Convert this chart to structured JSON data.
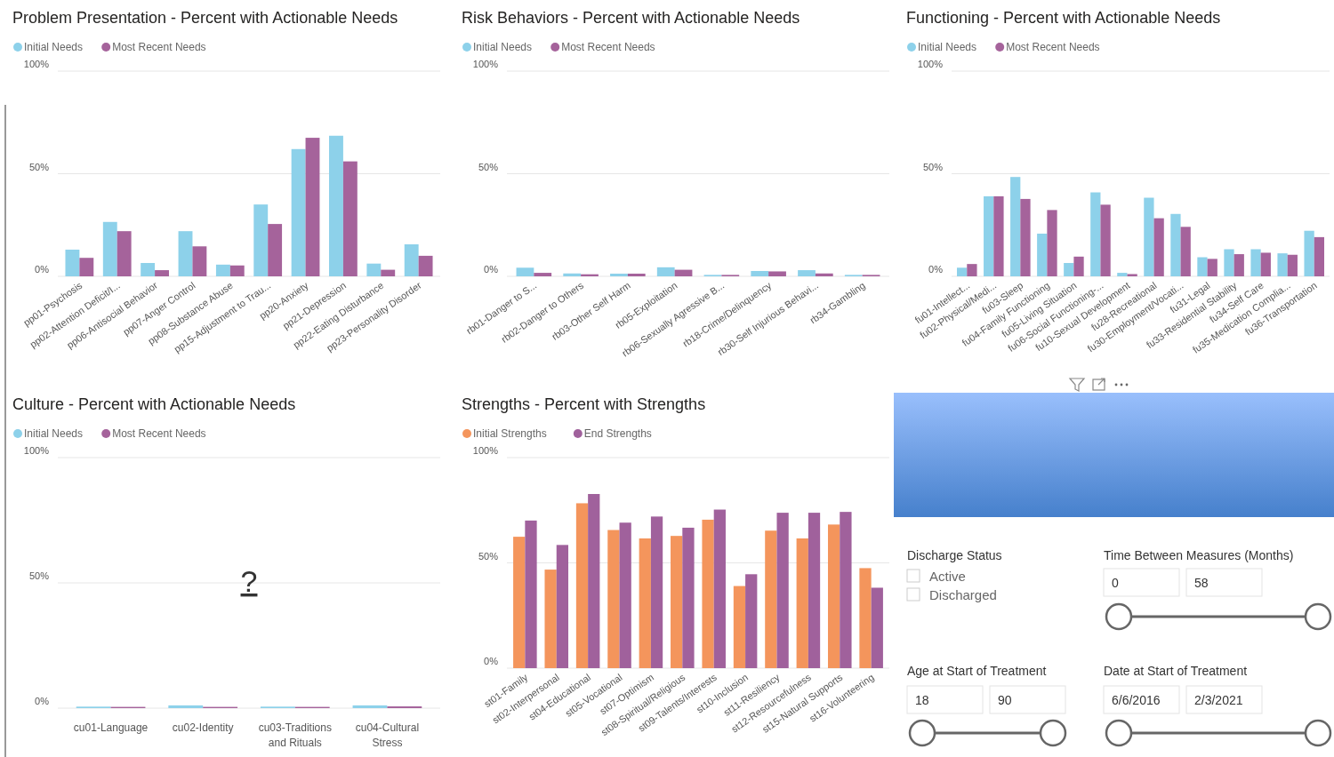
{
  "chart_data": [
    {
      "type": "bar",
      "title": "Problem Presentation - Percent with Actionable Needs",
      "categories": [
        "pp01-Psychosis",
        "pp02-Attention Deficit/I...",
        "pp06-Antisocial Behavior",
        "pp07-Anger Control",
        "pp08-Substance Abuse",
        "pp15-Adjustment to Trau...",
        "pp20-Anxiety",
        "pp21-Depression",
        "pp22-Eating Disturbance",
        "pp23-Personality Disorder"
      ],
      "series": [
        {
          "name": "Initial Needs",
          "color": "#8dd1ea",
          "values": [
            13,
            26.5,
            6.5,
            22,
            5.7,
            35,
            62,
            68.5,
            6.2,
            15.6
          ]
        },
        {
          "name": "Most Recent Needs",
          "color": "#a5639b",
          "values": [
            9,
            22,
            3,
            14.6,
            5.3,
            25.5,
            67.5,
            56,
            3.2,
            10
          ]
        }
      ],
      "ylim": [
        0,
        100
      ],
      "yticks": [
        {
          "value": 0,
          "label": "0%"
        },
        {
          "value": 50,
          "label": "50%"
        },
        {
          "value": 100,
          "label": "100%"
        }
      ],
      "grid": "y",
      "legend": "top left"
    },
    {
      "type": "bar",
      "title": "Risk Behaviors - Percent with Actionable Needs",
      "categories": [
        "rb01-Danger to S...",
        "rb02-Danger to Others",
        "rb03-Other Self Harm",
        "rb05-Exploitation",
        "rb06-Sexually Agressive B...",
        "rb18-Crime/Delinquency",
        "rb30-Self Injurious Behavi...",
        "rb34-Gambling"
      ],
      "series": [
        {
          "name": "Initial Needs",
          "color": "#8dd1ea",
          "values": [
            4.2,
            1.4,
            1.3,
            4.4,
            0.7,
            2.6,
            3,
            0.7
          ]
        },
        {
          "name": "Most Recent Needs",
          "color": "#a5639b",
          "values": [
            1.7,
            1,
            1.3,
            3.2,
            0.7,
            2.4,
            1.4,
            0.7
          ]
        }
      ],
      "ylim": [
        0,
        100
      ],
      "yticks": [
        {
          "value": 0,
          "label": "0%"
        },
        {
          "value": 50,
          "label": "50%"
        },
        {
          "value": 100,
          "label": "100%"
        }
      ],
      "grid": "y",
      "legend": "top left"
    },
    {
      "type": "bar",
      "title": "Functioning - Percent with Actionable Needs",
      "categories": [
        "fu01-Intellect...",
        "fu02-Physical/Medi...",
        "fu03-Sleep",
        "fu04-Family Functioning",
        "fu05-Living Situation",
        "fu06-Social Functioning-...",
        "fu10-Sexual Development",
        "fu28-Recreational",
        "fu30-Employment/Vocati...",
        "fu31-Legal",
        "fu33-Residential Stability",
        "fu34-Self Care",
        "fu35-Medication Complia...",
        "fu36-Transportation"
      ],
      "series": [
        {
          "name": "Initial Needs",
          "color": "#8dd1ea",
          "values": [
            4.2,
            39,
            48.4,
            20.8,
            6.5,
            40.9,
            1.7,
            38.3,
            30.4,
            9.3,
            13.2,
            13.2,
            11.2,
            22.2
          ]
        },
        {
          "name": "Most Recent Needs",
          "color": "#a5639b",
          "values": [
            6,
            39,
            37.7,
            32.3,
            9.6,
            34.9,
            1.1,
            28.3,
            24.1,
            8.5,
            10.8,
            11.5,
            10.5,
            19.1
          ]
        }
      ],
      "ylim": [
        0,
        100
      ],
      "yticks": [
        {
          "value": 0,
          "label": "0%"
        },
        {
          "value": 50,
          "label": "50%"
        },
        {
          "value": 100,
          "label": "100%"
        }
      ],
      "grid": "y",
      "legend": "top left"
    },
    {
      "type": "bar",
      "title": "Culture - Percent with Actionable Needs",
      "categories": [
        "cu01-Language",
        "cu02-Identity",
        "cu03-Traditions and Rituals",
        "cu04-Cultural Stress"
      ],
      "series": [
        {
          "name": "Initial Needs",
          "color": "#8dd1ea",
          "values": [
            0.6,
            1.1,
            0.6,
            1.1
          ]
        },
        {
          "name": "Most Recent Needs",
          "color": "#a5639b",
          "values": [
            0.5,
            0.5,
            0.5,
            0.7
          ]
        }
      ],
      "ylim": [
        0,
        100
      ],
      "yticks": [
        {
          "value": 0,
          "label": "0%"
        },
        {
          "value": 50,
          "label": "50%"
        },
        {
          "value": 100,
          "label": "100%"
        }
      ],
      "grid": "y",
      "legend": "top left",
      "annotations": [
        "?"
      ]
    },
    {
      "type": "bar",
      "title": "Strengths - Percent with Strengths",
      "categories": [
        "st01-Family",
        "st02-Interpersonal",
        "st04-Educational",
        "st05-Vocational",
        "st07-Optimism",
        "st08-Spiritual/Religious",
        "st09-Talents/Interests",
        "st10-Inclusion",
        "st11-Resiliency",
        "st12-Resourcefulness",
        "st15-Natural Supports",
        "st16-Volunteering"
      ],
      "series": [
        {
          "name": "Initial Strengths",
          "color": "#f4955c",
          "values": [
            62.4,
            46.8,
            78.3,
            65.6,
            61.6,
            62.8,
            70.5,
            39,
            65.3,
            61.6,
            68.2,
            47.5
          ]
        },
        {
          "name": "End Strengths",
          "color": "#a0619c",
          "values": [
            70.1,
            58.5,
            82.7,
            69.1,
            72,
            66.7,
            75.3,
            44.6,
            73.8,
            73.8,
            74.2,
            38.2
          ]
        }
      ],
      "ylim": [
        0,
        100
      ],
      "yticks": [
        {
          "value": 0,
          "label": "0%"
        },
        {
          "value": 50,
          "label": "50%"
        },
        {
          "value": 100,
          "label": "100%"
        }
      ],
      "grid": "y",
      "legend": "top left"
    },
    {
      "type": "other",
      "annotations": [
        "Discharge Status",
        "Active",
        "Discharged",
        "Time Between Measures (Months)",
        "0",
        "58",
        "Age at Start of Treatment",
        "18",
        "90",
        "Date at Start of Treatment",
        "6/6/2016",
        "2/3/2021"
      ]
    }
  ]
}
